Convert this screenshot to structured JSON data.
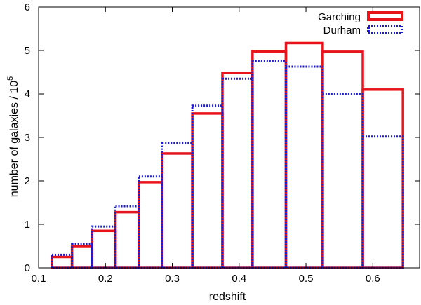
{
  "chart_data": {
    "type": "bar",
    "title": "",
    "xlabel": "redshift",
    "ylabel_main": "number of galaxies / 10",
    "ylabel_exponent": "5",
    "xlim": [
      0.1,
      0.67
    ],
    "ylim": [
      0,
      6
    ],
    "xticks": [
      "0.1",
      "0.2",
      "0.3",
      "0.4",
      "0.5",
      "0.6"
    ],
    "yticks": [
      "0",
      "1",
      "2",
      "3",
      "4",
      "5",
      "6"
    ],
    "legend_position": "top-right",
    "bin_edges": [
      0.12,
      0.15,
      0.18,
      0.215,
      0.25,
      0.285,
      0.33,
      0.375,
      0.42,
      0.47,
      0.525,
      0.585,
      0.645
    ],
    "series": [
      {
        "name": "Garching",
        "style": "solid",
        "color": "#e8141c",
        "values": [
          0.25,
          0.5,
          0.85,
          1.28,
          1.97,
          2.63,
          3.55,
          4.48,
          4.98,
          5.17,
          4.97,
          4.1
        ]
      },
      {
        "name": "Durham",
        "style": "dotted",
        "color": "#1a1ad0",
        "values": [
          0.3,
          0.55,
          0.95,
          1.42,
          2.1,
          2.87,
          3.73,
          4.35,
          4.75,
          4.63,
          4.0,
          3.02
        ]
      }
    ]
  }
}
